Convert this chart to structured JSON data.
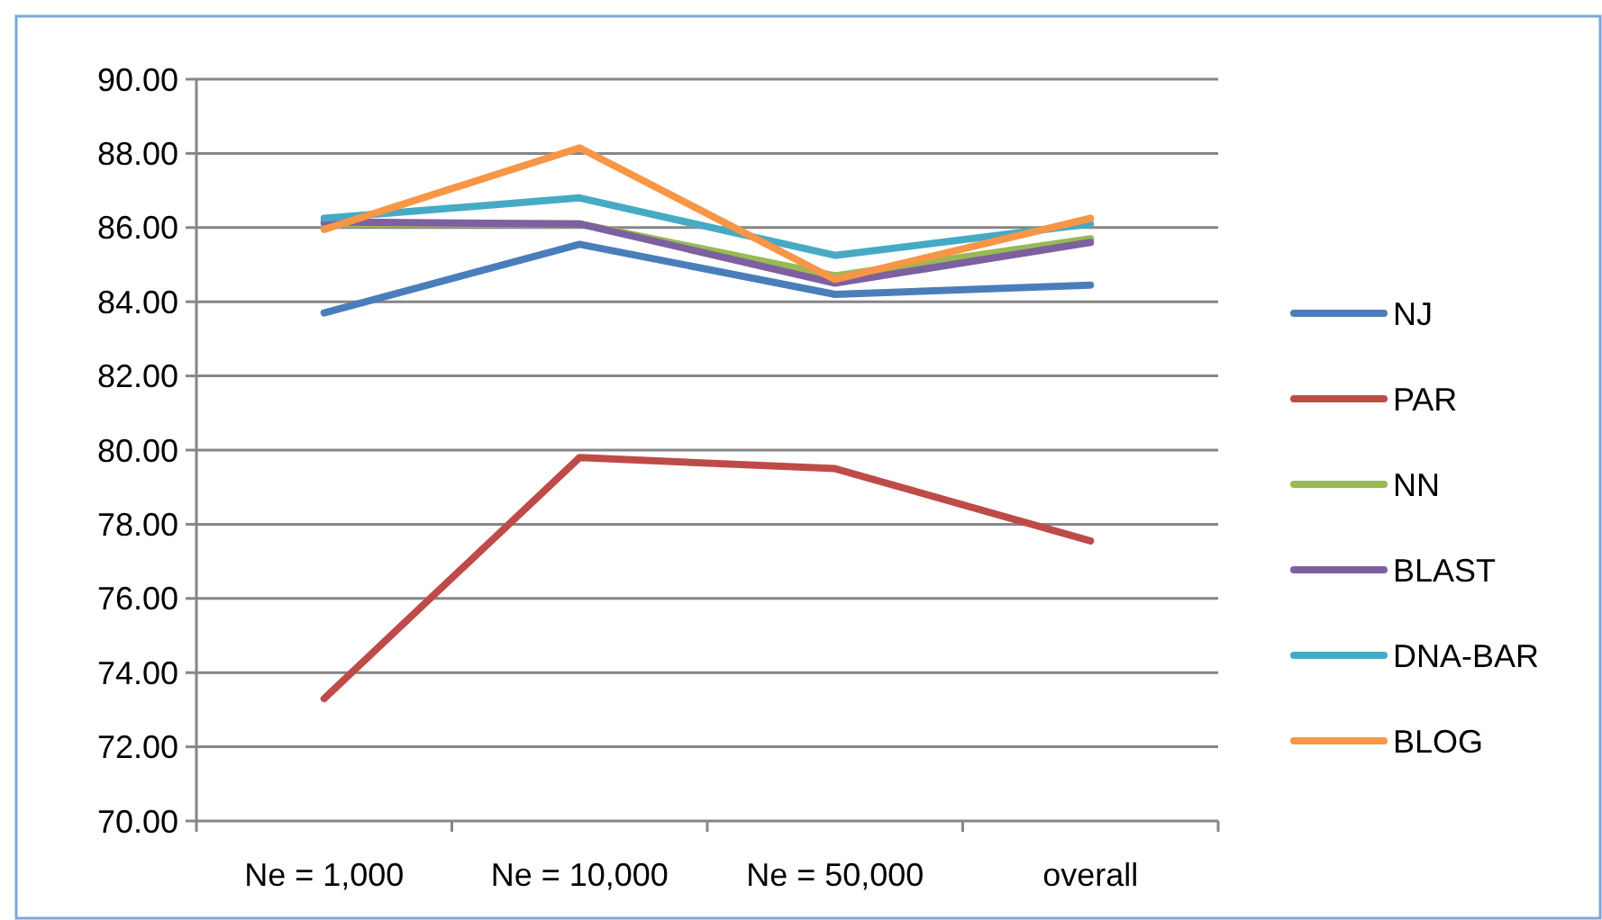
{
  "chart_data": {
    "type": "line",
    "categories": [
      "Ne = 1,000",
      "Ne = 10,000",
      "Ne = 50,000",
      "overall"
    ],
    "series": [
      {
        "name": "NJ",
        "color": "#4a7ebb",
        "values": [
          83.7,
          85.55,
          84.2,
          84.45
        ]
      },
      {
        "name": "PAR",
        "color": "#be4b48",
        "values": [
          73.3,
          79.8,
          79.5,
          77.55
        ]
      },
      {
        "name": "NN",
        "color": "#98b954",
        "values": [
          86.1,
          86.1,
          84.7,
          85.7
        ]
      },
      {
        "name": "BLAST",
        "color": "#7d60a0",
        "values": [
          86.15,
          86.1,
          84.5,
          85.6
        ]
      },
      {
        "name": "DNA-BAR",
        "color": "#46aac5",
        "values": [
          86.25,
          86.8,
          85.25,
          86.1
        ]
      },
      {
        "name": "BLOG",
        "color": "#f79646",
        "values": [
          85.95,
          88.15,
          84.6,
          86.25
        ]
      }
    ],
    "ylim": [
      70,
      90
    ],
    "yticks": [
      {
        "value": 70,
        "label": "70.00"
      },
      {
        "value": 72,
        "label": "72.00"
      },
      {
        "value": 74,
        "label": "74.00"
      },
      {
        "value": 76,
        "label": "76.00"
      },
      {
        "value": 78,
        "label": "78.00"
      },
      {
        "value": 80,
        "label": "80.00"
      },
      {
        "value": 82,
        "label": "82.00"
      },
      {
        "value": 84,
        "label": "84.00"
      },
      {
        "value": 86,
        "label": "86.00"
      },
      {
        "value": 88,
        "label": "88.00"
      },
      {
        "value": 90,
        "label": "90.00"
      }
    ],
    "grid": "y",
    "legend": "right",
    "marker": "none",
    "line_style": "solid"
  }
}
